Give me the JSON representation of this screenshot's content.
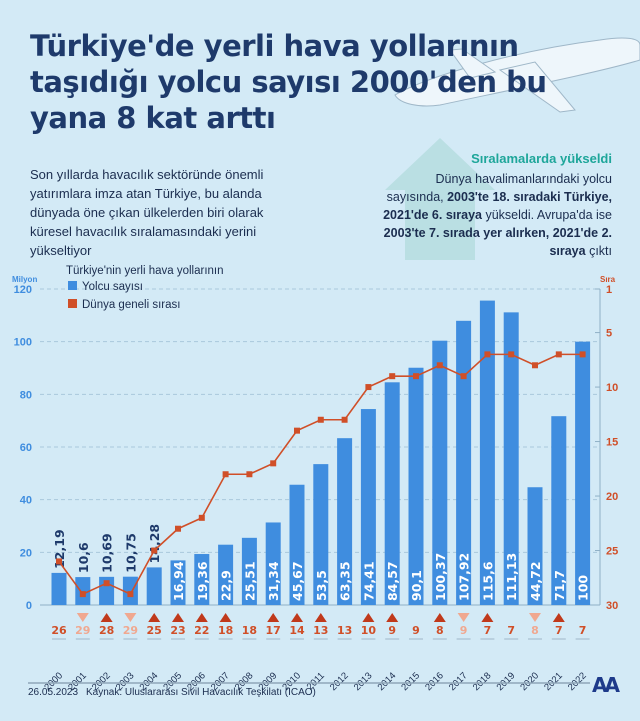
{
  "title": "Türkiye'de yerli hava yollarının taşıdığı yolcu sayısı 2000'den bu yana 8 kat arttı",
  "intro": "Son yıllarda havacılık sektöründe önemli yatırımlara imza atan Türkiye, bu alanda dünyada öne çıkan ülkelerden biri olarak küresel havacılık sıralamasındaki yerini yükseltiyor",
  "highlight": {
    "heading": "Sıralamalarda yükseldi",
    "p1": "Dünya havalimanlarındaki yolcu sayısında, ",
    "b1": "2003'te 18. sıradaki Türkiye, 2021'de 6. sıraya",
    "p2": " yükseldi. Avrupa'da ise ",
    "b2": "2003'te 7. sırada yer alırken, 2021'de 2. sıraya",
    "p3": " çıktı"
  },
  "footer": {
    "date": "26.05.2023",
    "source": "Kaynak: Uluslararası Sivil Havacılık Teşkilatı (ICAO)",
    "logo": "AA"
  },
  "colors": {
    "bar": "#3f8ddf",
    "line": "#d04f28",
    "title": "#1e3a6b",
    "background": "#d3eaf6",
    "up": "#c0391b",
    "down": "#f0a890"
  },
  "chart_data": {
    "type": "bar+line",
    "legend_title": "Türkiye'nin yerli hava yollarının",
    "ylabel_left": "Milyon",
    "ylabel_right": "Sıra",
    "ylim_left": [
      0,
      120
    ],
    "yticks_left": [
      0,
      20,
      40,
      60,
      80,
      100,
      120
    ],
    "ylim_right": [
      30,
      1
    ],
    "yticks_right": [
      1,
      5,
      10,
      15,
      20,
      25,
      30
    ],
    "grid": true,
    "legend_placement": "top-left",
    "categories": [
      "2000",
      "2001",
      "2002",
      "2003",
      "2004",
      "2005",
      "2006",
      "2007",
      "2008",
      "2009",
      "2010",
      "2011",
      "2012",
      "2013",
      "2014",
      "2015",
      "2016",
      "2017",
      "2018",
      "2019",
      "2020",
      "2021",
      "2022"
    ],
    "series": [
      {
        "name": "Yolcu sayısı",
        "type": "bar",
        "values": [
          12.19,
          10.6,
          10.69,
          10.75,
          14.28,
          16.94,
          19.36,
          22.9,
          25.51,
          31.34,
          45.67,
          53.5,
          63.35,
          74.41,
          84.57,
          90.1,
          100.37,
          107.92,
          115.6,
          111.13,
          44.72,
          71.7,
          100
        ],
        "labels": [
          "12,19",
          "10,6",
          "10,69",
          "10,75",
          "14,28",
          "16,94",
          "19,36",
          "22,9",
          "25,51",
          "31,34",
          "45,67",
          "53,5",
          "63,35",
          "74,41",
          "84,57",
          "90,1",
          "100,37",
          "107,92",
          "115,6",
          "111,13",
          "44,72",
          "71,7",
          "100"
        ]
      },
      {
        "name": "Dünya geneli sırası",
        "type": "line",
        "values": [
          26,
          29,
          28,
          29,
          25,
          23,
          22,
          18,
          18,
          17,
          14,
          13,
          13,
          10,
          9,
          9,
          8,
          9,
          7,
          7,
          8,
          7,
          7
        ],
        "trend": [
          "none",
          "down",
          "up",
          "down",
          "up",
          "up",
          "up",
          "up",
          "none",
          "up",
          "up",
          "up",
          "none",
          "up",
          "up",
          "none",
          "up",
          "down",
          "up",
          "none",
          "down",
          "up",
          "none"
        ]
      }
    ]
  }
}
